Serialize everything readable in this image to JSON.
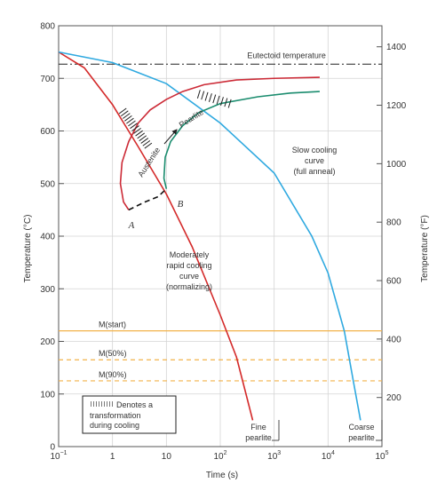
{
  "chart_data": {
    "type": "line",
    "xlabel": "Time (s)",
    "ylabel": "Temperature (°C)",
    "ylabel_right": "Temperature (°F)",
    "x_scale": "log",
    "xlim": [
      0.1,
      100000
    ],
    "ylim": [
      0,
      800
    ],
    "x_ticks": [
      {
        "value": 0.1,
        "base": "10",
        "exp": "−1"
      },
      {
        "value": 1,
        "base": "1",
        "exp": ""
      },
      {
        "value": 10,
        "base": "10",
        "exp": ""
      },
      {
        "value": 100,
        "base": "10",
        "exp": "2"
      },
      {
        "value": 1000,
        "base": "10",
        "exp": "3"
      },
      {
        "value": 10000,
        "base": "10",
        "exp": "4"
      },
      {
        "value": 100000,
        "base": "10",
        "exp": "5"
      }
    ],
    "y_ticks": [
      0,
      100,
      200,
      300,
      400,
      500,
      600,
      700,
      800
    ],
    "y_ticks_right": [
      200,
      400,
      600,
      800,
      1000,
      1200,
      1400
    ],
    "grid": true,
    "eutectoid": {
      "label": "Eutectoid temperature",
      "y": 727
    },
    "martensite_lines": [
      {
        "label": "M(start)",
        "y": 220,
        "style": "solid"
      },
      {
        "label": "M(50%)",
        "y": 165,
        "style": "dashed"
      },
      {
        "label": "M(90%)",
        "y": 125,
        "style": "dashed"
      }
    ],
    "transformation_curves": [
      {
        "name": "start",
        "color": "#cc2a36",
        "points": [
          [
            2.0,
            450
          ],
          [
            1.6,
            465
          ],
          [
            1.4,
            500
          ],
          [
            1.5,
            540
          ],
          [
            2.0,
            580
          ],
          [
            3.0,
            615
          ],
          [
            5.0,
            640
          ],
          [
            10.0,
            660
          ],
          [
            20.0,
            675
          ],
          [
            50.0,
            688
          ],
          [
            200,
            697
          ],
          [
            1000,
            700
          ],
          [
            7000,
            702
          ]
        ]
      },
      {
        "name": "finish",
        "color": "#1a8c6e",
        "points": [
          [
            10.0,
            490
          ],
          [
            9.0,
            510
          ],
          [
            9.5,
            550
          ],
          [
            12.0,
            580
          ],
          [
            20.0,
            610
          ],
          [
            40.0,
            635
          ],
          [
            100,
            652
          ],
          [
            500,
            665
          ],
          [
            2000,
            672
          ],
          [
            7000,
            675
          ]
        ]
      }
    ],
    "dashed_segment": {
      "points": [
        [
          2.0,
          450
        ],
        [
          4.0,
          465
        ],
        [
          7.0,
          475
        ],
        [
          10.0,
          490
        ]
      ],
      "label_A": "A",
      "label_B": "B"
    },
    "cooling_curves": [
      {
        "name": "Moderately rapid cooling curve (normalizing)",
        "color": "#d42a2a",
        "points": [
          [
            0.1,
            750
          ],
          [
            0.3,
            720
          ],
          [
            1.0,
            650
          ],
          [
            3.0,
            570
          ],
          [
            10.0,
            480
          ],
          [
            30.0,
            380
          ],
          [
            100,
            250
          ],
          [
            200,
            170
          ],
          [
            300,
            100
          ],
          [
            400,
            50
          ]
        ]
      },
      {
        "name": "Slow cooling curve (full anneal)",
        "color": "#2fa9e0",
        "points": [
          [
            0.1,
            750
          ],
          [
            1.0,
            730
          ],
          [
            10.0,
            690
          ],
          [
            100,
            615
          ],
          [
            1000,
            520
          ],
          [
            5000,
            400
          ],
          [
            10000,
            330
          ],
          [
            20000,
            220
          ],
          [
            30000,
            120
          ],
          [
            40000,
            50
          ]
        ]
      }
    ],
    "region_labels": {
      "austenite": "Austenite",
      "pearlite": "Pearlite"
    },
    "annotations": {
      "moderate": [
        "Moderately",
        "rapid cooling",
        "curve",
        "(normalizing)"
      ],
      "slow": [
        "Slow cooling",
        "curve",
        "(full anneal)"
      ],
      "fine": [
        "Fine",
        "pearlite"
      ],
      "coarse": [
        "Coarse",
        "pearlite"
      ],
      "legend": [
        "Denotes a",
        "transformation",
        "during cooling"
      ]
    }
  }
}
